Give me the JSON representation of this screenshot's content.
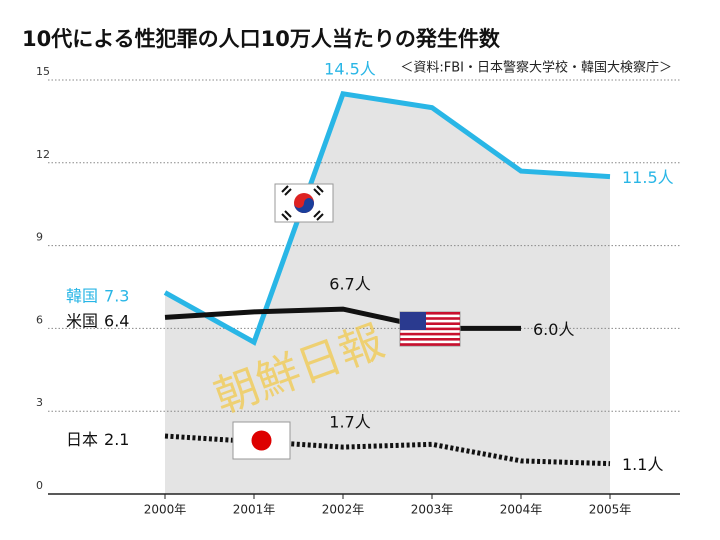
{
  "chart_data": {
    "type": "line",
    "title": "10代による性犯罪の人口10万人当たりの発生件数",
    "subtitle": "＜資料:FBI・日本警察大学校・韓国大検察庁＞",
    "watermark": "朝鮮日報",
    "categories": [
      "2000年",
      "2001年",
      "2002年",
      "2003年",
      "2004年",
      "2005年"
    ],
    "ylim": [
      0,
      15
    ],
    "yticks": [
      0,
      3,
      6,
      9,
      12,
      15
    ],
    "grid": true,
    "series": [
      {
        "name": "韓国",
        "color": "#29b6e6",
        "values": [
          7.3,
          5.5,
          14.5,
          14.0,
          11.7,
          11.5
        ],
        "value_labels": [
          "7.3",
          null,
          "14.5人",
          null,
          null,
          "11.5人"
        ]
      },
      {
        "name": "米国",
        "color": "#111111",
        "values": [
          6.4,
          6.6,
          6.7,
          6.0,
          6.0,
          null
        ],
        "value_labels": [
          "6.4",
          null,
          "6.7人",
          null,
          "6.0人",
          null
        ]
      },
      {
        "name": "日本",
        "color": "#111111",
        "dashed": true,
        "values": [
          2.1,
          1.9,
          1.7,
          1.8,
          1.2,
          1.1
        ],
        "value_labels": [
          "2.1",
          null,
          "1.7人",
          null,
          null,
          "1.1人"
        ]
      }
    ]
  }
}
